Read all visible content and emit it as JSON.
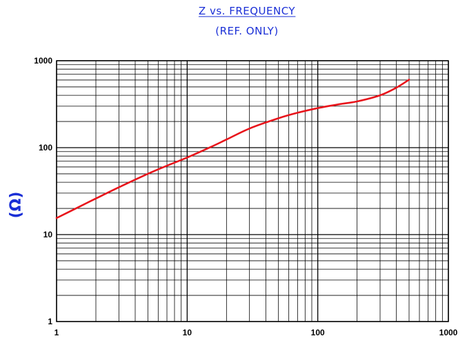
{
  "chart_data": {
    "type": "line",
    "title": "Z vs. FREQUENCY",
    "subtitle": "(REF. ONLY)",
    "xlabel": "",
    "ylabel": "(Ω)",
    "x_scale": "log",
    "y_scale": "log",
    "xlim": [
      1,
      1000
    ],
    "ylim": [
      1,
      1000
    ],
    "x_ticks": [
      "1",
      "10",
      "100",
      "1000"
    ],
    "y_ticks": [
      "1",
      "10",
      "100",
      "1000"
    ],
    "grid": true,
    "colors": {
      "series": "#e8141b",
      "title": "#1a2fd6",
      "grid": "#000000"
    },
    "series": [
      {
        "x": [
          1,
          1.5,
          2,
          3,
          5,
          7,
          10,
          15,
          20,
          30,
          50,
          70,
          100,
          150,
          200,
          300,
          400,
          500
        ],
        "values": [
          15.5,
          21,
          26,
          35,
          50,
          62,
          77,
          101,
          124,
          166,
          218,
          252,
          285,
          318,
          340,
          400,
          490,
          605
        ]
      }
    ]
  }
}
